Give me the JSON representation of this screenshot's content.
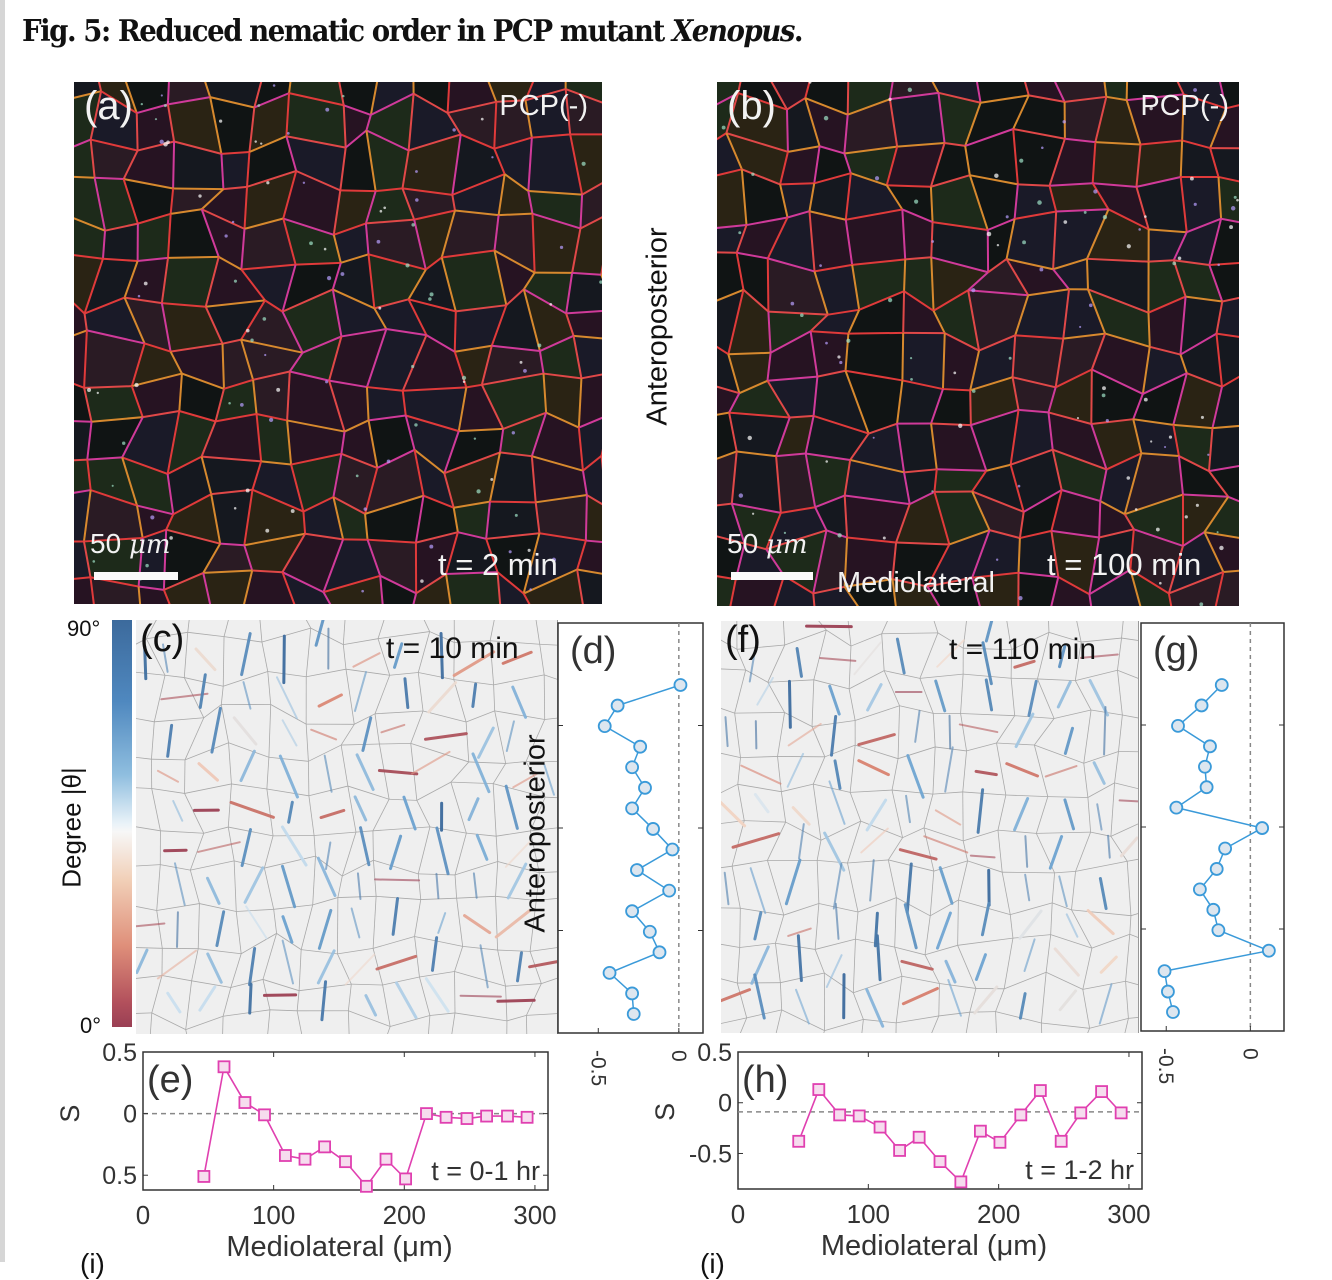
{
  "figure": {
    "title_prefix": "Fig. 5: Reduced nematic order in PCP mutant ",
    "title_italic": "Xenopus",
    "title_suffix": "."
  },
  "panels": {
    "a": {
      "letter": "(a)",
      "condition": "PCP(-)",
      "scale_bar": "50",
      "scale_unit": "μm",
      "time": "t = 2 min"
    },
    "b": {
      "letter": "(b)",
      "condition": "PCP(-)",
      "scale_bar": "50",
      "scale_unit": "μm",
      "time": "t = 100 min",
      "axis_label": "Mediolateral"
    },
    "ap_label": "Anteroposterior",
    "c": {
      "letter": "(c)",
      "time": "t = 10 min",
      "axis_label": "Anteroposterior"
    },
    "d": {
      "letter": "(d)"
    },
    "f": {
      "letter": "(f)",
      "time": "t = 110 min"
    },
    "g": {
      "letter": "(g)"
    },
    "e": {
      "letter": "(e)",
      "time": "t = 0-1 hr"
    },
    "h": {
      "letter": "(h)",
      "time": "t = 1-2 hr"
    },
    "i_partial": "(i)"
  },
  "colorbar": {
    "label": "Degree |θ|",
    "max_label": "90°",
    "min_label": "0°",
    "colors": {
      "high": "#3c6a9c",
      "mid": "#f7f7f7",
      "low": "#9a3f54"
    }
  },
  "colors": {
    "s_series": "#e040b0",
    "s_fill": "#f6dcee",
    "profile_series": "#3a9ad9",
    "profile_fill": "#dde6ef",
    "rod_vertical": "#3d6fa6",
    "rod_horizontal": "#9b3650",
    "membrane_red": "#e03a3a",
    "membrane_orange": "#d7892e",
    "membrane_magenta": "#d03a9a"
  },
  "chart_data": [
    {
      "id": "d",
      "type": "line",
      "orientation": "vertical-profile",
      "title": "(d)",
      "xlabel": "",
      "ylabel": "Anteroposterior",
      "xticks": [
        "-0.5",
        "0"
      ],
      "xlim": [
        -0.75,
        0.15
      ],
      "reference_line_x": 0,
      "position_index": [
        1,
        2,
        3,
        4,
        5,
        6,
        7,
        8,
        9,
        10,
        11,
        12,
        13,
        14,
        15,
        16,
        17
      ],
      "values": [
        0.01,
        -0.38,
        -0.46,
        -0.24,
        -0.29,
        -0.21,
        -0.29,
        -0.16,
        -0.04,
        -0.26,
        -0.06,
        -0.29,
        -0.18,
        -0.12,
        -0.43,
        -0.29,
        -0.28
      ],
      "marker": "circle"
    },
    {
      "id": "g",
      "type": "line",
      "orientation": "vertical-profile",
      "title": "(g)",
      "xlabel": "",
      "ylabel": "",
      "xticks": [
        "-0.5",
        "0"
      ],
      "xlim": [
        -0.65,
        0.2
      ],
      "reference_line_x": 0,
      "position_index": [
        1,
        2,
        3,
        4,
        5,
        6,
        7,
        8,
        9,
        10,
        11,
        12,
        13,
        14,
        15,
        16,
        17
      ],
      "values": [
        -0.17,
        -0.29,
        -0.43,
        -0.24,
        -0.27,
        -0.26,
        -0.44,
        0.07,
        -0.15,
        -0.2,
        -0.3,
        -0.22,
        -0.19,
        0.11,
        -0.51,
        -0.49,
        -0.46
      ],
      "marker": "circle"
    },
    {
      "id": "e",
      "type": "line",
      "title": "(e)",
      "annotation": "t = 0-1 hr",
      "xlabel": "Mediolateral (μm)",
      "ylabel": "S",
      "xticks": [
        "0",
        "100",
        "200",
        "300"
      ],
      "yticks": [
        "0.5",
        "0",
        "0.5"
      ],
      "xlim": [
        0,
        310
      ],
      "ylim": [
        -0.62,
        0.5
      ],
      "reference_line_y": 0,
      "x": [
        46.6,
        62,
        78,
        93,
        109,
        124,
        139,
        155,
        171,
        186,
        201,
        217,
        232,
        248,
        263,
        279,
        294
      ],
      "values": [
        -0.51,
        0.38,
        0.09,
        -0.01,
        -0.34,
        -0.37,
        -0.27,
        -0.39,
        -0.59,
        -0.37,
        -0.53,
        0.0,
        -0.03,
        -0.04,
        -0.02,
        -0.02,
        -0.03
      ],
      "marker": "square"
    },
    {
      "id": "h",
      "type": "line",
      "title": "(h)",
      "annotation": "t = 1-2 hr",
      "xlabel": "Mediolateral (μm)",
      "ylabel": "S",
      "xticks": [
        "0",
        "100",
        "200",
        "300"
      ],
      "yticks": [
        "0.5",
        "0",
        "-0.5"
      ],
      "xlim": [
        0,
        310
      ],
      "ylim": [
        -0.85,
        0.5
      ],
      "reference_line_y": -0.09,
      "x": [
        46.6,
        62,
        78,
        93,
        109,
        124,
        139,
        155,
        171,
        186,
        201,
        217,
        232,
        248,
        263,
        279,
        294
      ],
      "values": [
        -0.38,
        0.13,
        -0.12,
        -0.13,
        -0.24,
        -0.47,
        -0.34,
        -0.58,
        -0.78,
        -0.28,
        -0.39,
        -0.12,
        0.12,
        -0.38,
        -0.1,
        0.11,
        -0.1
      ],
      "marker": "square"
    }
  ]
}
